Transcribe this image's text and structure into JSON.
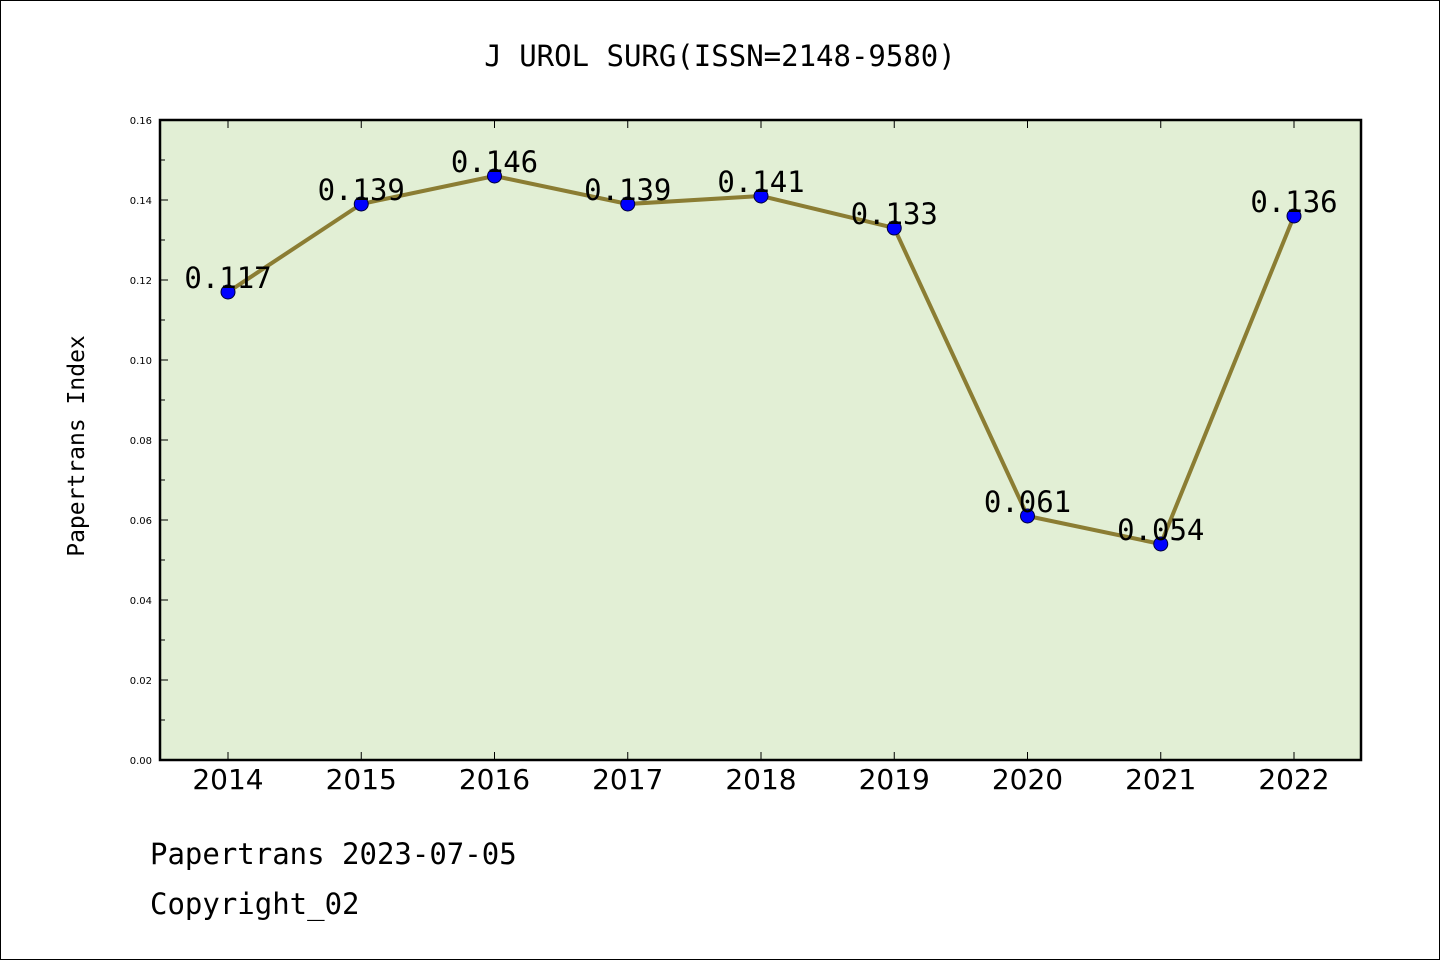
{
  "chart_data": {
    "type": "line",
    "title": "J UROL SURG(ISSN=2148-9580)",
    "xlabel": "",
    "ylabel": "Papertrans Index",
    "categories": [
      "2014",
      "2015",
      "2016",
      "2017",
      "2018",
      "2019",
      "2020",
      "2021",
      "2022"
    ],
    "series": [
      {
        "values": [
          0.117,
          0.139,
          0.146,
          0.139,
          0.141,
          0.133,
          0.061,
          0.054,
          0.136
        ],
        "data_labels": [
          "0.117",
          "0.139",
          "0.146",
          "0.139",
          "0.141",
          "0.133",
          "0.061",
          "0.054",
          "0.136"
        ]
      }
    ],
    "ylim": [
      0,
      0.16
    ],
    "yticks": [
      "0.00",
      "0.02",
      "0.04",
      "0.06",
      "0.08",
      "0.10",
      "0.12",
      "0.14",
      "0.16"
    ],
    "grid": false,
    "colors": {
      "plot_background": "#e2efd5",
      "line": "#8b7d33",
      "marker": "#0000ff"
    }
  },
  "footer": {
    "line1": "Papertrans 2023-07-05",
    "line2": "Copyright_02"
  }
}
